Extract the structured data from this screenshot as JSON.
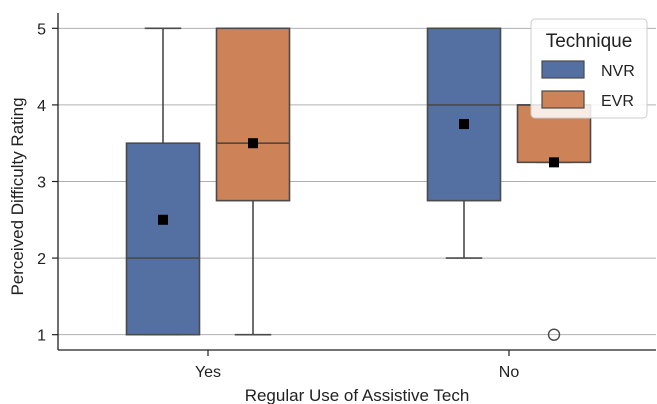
{
  "chart_data": {
    "type": "box",
    "title": "",
    "xlabel": "Regular Use of Assistive Tech",
    "ylabel": "Perceived Difficulty Rating",
    "categories": [
      "Yes",
      "No"
    ],
    "ylim": [
      0.8,
      5.2
    ],
    "yticks": [
      1,
      2,
      3,
      4,
      5
    ],
    "grid": "horizontal",
    "legend": {
      "title": "Technique",
      "placement": "top-right"
    },
    "series": [
      {
        "name": "NVR",
        "color": "#5470A3",
        "boxes": [
          {
            "category": "Yes",
            "whisker_low": 1,
            "q1": 1,
            "median": 2,
            "q3": 3.5,
            "whisker_high": 5,
            "mean": 2.5,
            "outliers": []
          },
          {
            "category": "No",
            "whisker_low": 2,
            "q1": 2.75,
            "median": 4,
            "q3": 5,
            "whisker_high": 5,
            "mean": 3.75,
            "outliers": []
          }
        ]
      },
      {
        "name": "EVR",
        "color": "#CE8257",
        "boxes": [
          {
            "category": "Yes",
            "whisker_low": 1,
            "q1": 2.75,
            "median": 3.5,
            "q3": 5,
            "whisker_high": 5,
            "mean": 3.5,
            "outliers": []
          },
          {
            "category": "No",
            "whisker_low": 3.25,
            "q1": 3.25,
            "median": 4,
            "q3": 4,
            "whisker_high": 4,
            "mean": 3.25,
            "outliers": [
              1
            ]
          }
        ]
      }
    ]
  }
}
